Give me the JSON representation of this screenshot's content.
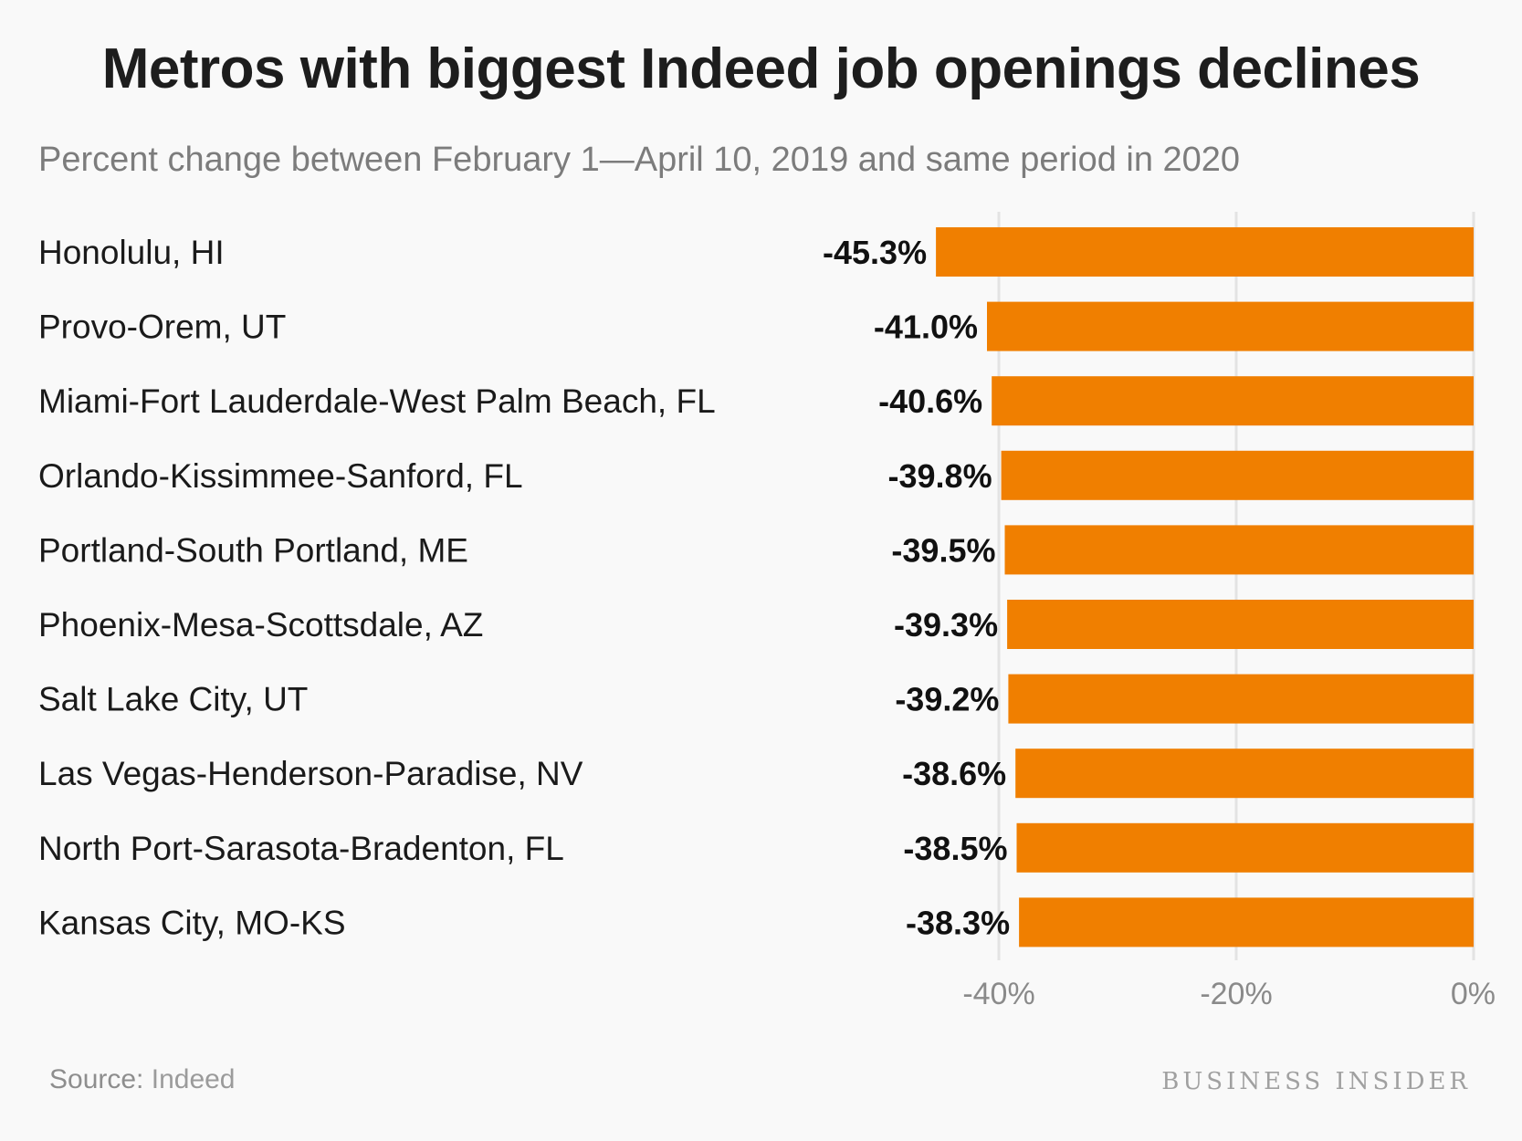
{
  "title": "Metros with biggest Indeed job openings declines",
  "subtitle": "Percent change between February 1—April 10, 2019 and same period in 2020",
  "source_label": "Source:",
  "source_value": "Indeed",
  "brand": "BUSINESS INSIDER",
  "colors": {
    "bar": "#f07f00",
    "grid": "#e3e3e3",
    "tick_text": "#8a8a8a",
    "label_text": "#1a1a1a"
  },
  "chart_data": {
    "type": "bar",
    "orientation": "horizontal",
    "categories": [
      "Honolulu, HI",
      "Provo-Orem, UT",
      "Miami-Fort Lauderdale-West Palm Beach, FL",
      "Orlando-Kissimmee-Sanford, FL",
      "Portland-South Portland, ME",
      "Phoenix-Mesa-Scottsdale, AZ",
      "Salt Lake City, UT",
      "Las Vegas-Henderson-Paradise, NV",
      "North Port-Sarasota-Bradenton, FL",
      "Kansas City, MO-KS"
    ],
    "values": [
      -45.3,
      -41.0,
      -40.6,
      -39.8,
      -39.5,
      -39.3,
      -39.2,
      -38.6,
      -38.5,
      -38.3
    ],
    "value_labels": [
      "-45.3%",
      "-41.0%",
      "-40.6%",
      "-39.8%",
      "-39.5%",
      "-39.3%",
      "-39.2%",
      "-38.6%",
      "-38.5%",
      "-38.3%"
    ],
    "xlim": [
      -40,
      0
    ],
    "xticks": [
      -40,
      -20,
      0
    ],
    "xtick_labels": [
      "-40%",
      "-20%",
      "0%"
    ],
    "grid": true,
    "legend": "none"
  }
}
